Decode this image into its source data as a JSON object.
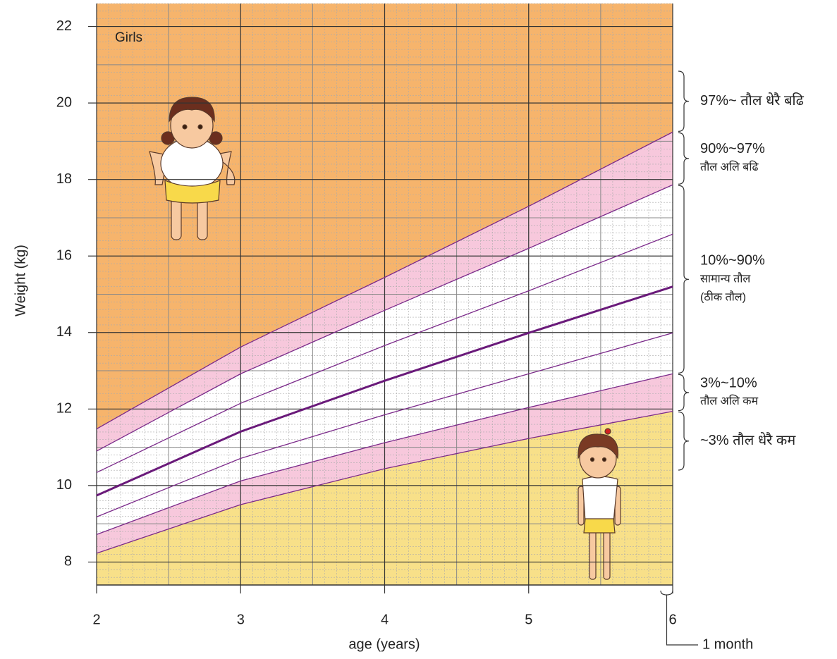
{
  "chart_data": {
    "type": "line",
    "title": "Girls",
    "xlabel": "age (years)",
    "ylabel": "Weight (kg)",
    "x": [
      2,
      3,
      4,
      5,
      6
    ],
    "xlim": [
      2,
      6
    ],
    "xticks": [
      2,
      3,
      4,
      5,
      6
    ],
    "ylim": [
      7.4,
      22.6
    ],
    "yticks": [
      8,
      10,
      12,
      14,
      16,
      18,
      20,
      22
    ],
    "grid": true,
    "series": [
      {
        "color": "#7b2a8a",
        "width": 1.3,
        "values": [
          8.23,
          9.5,
          10.44,
          11.23,
          11.94
        ]
      },
      {
        "color": "#7b2a8a",
        "width": 1.3,
        "values": [
          8.72,
          10.12,
          11.12,
          12.04,
          12.92
        ]
      },
      {
        "color": "#7b2a8a",
        "width": 1.3,
        "values": [
          9.18,
          10.71,
          11.85,
          12.92,
          13.99
        ]
      },
      {
        "color": "#6a1a7a",
        "width": 3,
        "values": [
          9.74,
          11.41,
          12.74,
          13.99,
          15.2
        ]
      },
      {
        "color": "#7b2a8a",
        "width": 1.3,
        "values": [
          10.34,
          12.15,
          13.66,
          15.09,
          16.57
        ]
      },
      {
        "color": "#7b2a8a",
        "width": 1.3,
        "values": [
          10.9,
          12.92,
          14.58,
          16.2,
          17.86
        ]
      },
      {
        "color": "#7b2a8a",
        "width": 1.3,
        "values": [
          11.48,
          13.62,
          15.44,
          17.3,
          19.24
        ]
      }
    ],
    "band_colors": [
      "#f8e089",
      "#f7c8dc",
      "#ffffff",
      "#ffffff",
      "#ffffff",
      "#ffffff",
      "#f7c8dc",
      "#f6b46c"
    ],
    "annotations": [
      {
        "lines": [
          "97%~ तौल धेरै बढि"
        ]
      },
      {
        "lines": [
          "90%~97%",
          "तौल अलि बढि"
        ]
      },
      {
        "lines": [
          "10%~90%",
          "सामान्य तौल",
          "(ठीक तौल)"
        ]
      },
      {
        "lines": [
          "3%~10%",
          "तौल अलि कम"
        ]
      },
      {
        "lines": [
          "~3% तौल धेरै कम"
        ]
      }
    ],
    "month_note": "1 month"
  }
}
